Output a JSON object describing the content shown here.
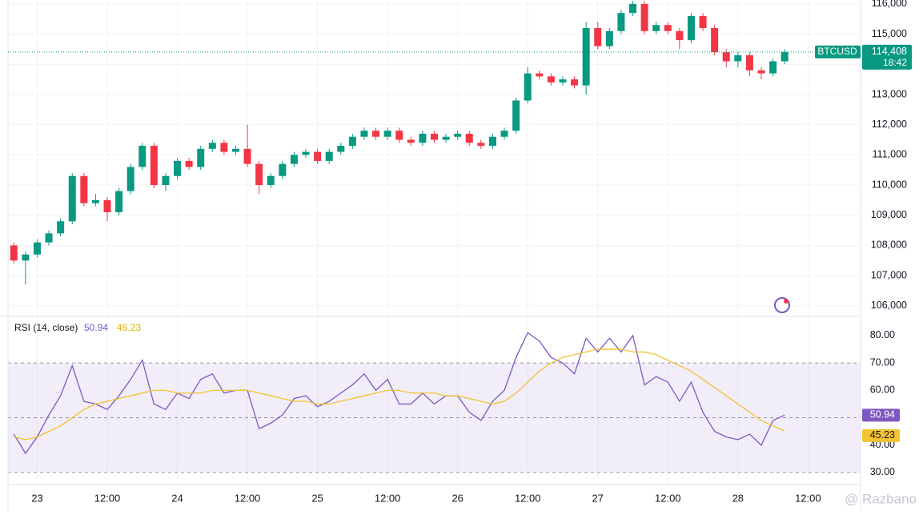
{
  "chart_data": [
    {
      "type": "candlestick",
      "symbol": "BTCUSD",
      "last_price_label": "114,408",
      "countdown": "18:42",
      "up_color": "#089981",
      "down_color": "#f23645",
      "x": [
        -4,
        -2,
        0,
        2,
        4,
        6,
        8,
        10,
        12,
        14,
        16,
        18,
        20,
        22,
        24,
        26,
        28,
        30,
        32,
        34,
        36,
        38,
        40,
        42,
        44,
        46,
        48,
        50,
        52,
        54,
        56,
        58,
        60,
        62,
        64,
        66,
        68,
        70,
        72,
        74,
        76,
        78,
        80,
        82,
        84,
        86,
        88,
        90,
        92,
        94,
        96,
        98,
        100,
        102,
        104,
        106,
        108,
        110,
        112,
        114,
        116,
        118,
        120,
        122,
        124,
        126,
        128
      ],
      "open": [
        108000,
        107500,
        107700,
        108100,
        108400,
        108800,
        110300,
        109400,
        109500,
        109100,
        109800,
        110600,
        111300,
        110000,
        110300,
        110800,
        110600,
        111200,
        111400,
        111100,
        111200,
        110700,
        110000,
        110300,
        110700,
        111000,
        111100,
        110800,
        111100,
        111300,
        111600,
        111800,
        111600,
        111800,
        111500,
        111400,
        111700,
        111500,
        111600,
        111700,
        111400,
        111300,
        111600,
        111800,
        112800,
        113700,
        113600,
        113400,
        113500,
        113300,
        115200,
        114600,
        115100,
        115700,
        116000,
        115100,
        115300,
        115100,
        114800,
        115600,
        115200,
        114400,
        114100,
        114300,
        113800,
        113700,
        114100
      ],
      "high": [
        108100,
        107800,
        108200,
        108500,
        108900,
        110400,
        110400,
        109700,
        109600,
        109900,
        110700,
        111400,
        111400,
        110400,
        110900,
        110900,
        111300,
        111500,
        111500,
        111300,
        112000,
        110800,
        110400,
        110800,
        111100,
        111200,
        111200,
        111200,
        111400,
        111700,
        111900,
        111900,
        111900,
        111900,
        111600,
        111800,
        111800,
        111700,
        111800,
        111800,
        111500,
        111700,
        111900,
        112900,
        113900,
        113800,
        113700,
        113600,
        113600,
        115400,
        115400,
        115200,
        115800,
        116100,
        116100,
        115400,
        115400,
        115200,
        115700,
        115700,
        115300,
        114500,
        114400,
        114400,
        113900,
        114200,
        114500
      ],
      "low": [
        107400,
        106700,
        107600,
        108000,
        108300,
        108700,
        109300,
        109300,
        108800,
        109000,
        109700,
        110500,
        109900,
        109800,
        110200,
        110500,
        110500,
        111100,
        111000,
        111000,
        110600,
        109700,
        109900,
        110200,
        110600,
        110900,
        110700,
        110700,
        111000,
        111200,
        111500,
        111500,
        111500,
        111400,
        111300,
        111300,
        111400,
        111400,
        111500,
        111300,
        111200,
        111200,
        111500,
        111700,
        112700,
        113500,
        113300,
        113300,
        113200,
        113000,
        114500,
        114500,
        115000,
        115600,
        115000,
        115000,
        115000,
        114500,
        114700,
        115100,
        114300,
        113900,
        113900,
        113600,
        113500,
        113600,
        114000
      ],
      "close": [
        107500,
        107700,
        108100,
        108400,
        108800,
        110300,
        109400,
        109500,
        109100,
        109800,
        110600,
        111300,
        110000,
        110300,
        110800,
        110600,
        111200,
        111400,
        111100,
        111200,
        110700,
        110000,
        110300,
        110700,
        111000,
        111100,
        110800,
        111100,
        111300,
        111600,
        111800,
        111600,
        111800,
        111500,
        111400,
        111700,
        111500,
        111600,
        111700,
        111400,
        111300,
        111600,
        111800,
        112800,
        113700,
        113600,
        113400,
        113500,
        113300,
        115200,
        114600,
        115100,
        115700,
        116000,
        115100,
        115300,
        115100,
        114800,
        115600,
        115200,
        114400,
        114100,
        114300,
        113800,
        113700,
        114100,
        114408
      ],
      "xlim": [
        -5,
        141
      ],
      "xticks": [
        {
          "value": 0,
          "label": "23"
        },
        {
          "value": 12,
          "label": "12:00"
        },
        {
          "value": 24,
          "label": "24"
        },
        {
          "value": 36,
          "label": "12:00"
        },
        {
          "value": 48,
          "label": "25"
        },
        {
          "value": 60,
          "label": "12:00"
        },
        {
          "value": 72,
          "label": "26"
        },
        {
          "value": 84,
          "label": "12:00"
        },
        {
          "value": 96,
          "label": "27"
        },
        {
          "value": 108,
          "label": "12:00"
        },
        {
          "value": 120,
          "label": "28"
        },
        {
          "value": 132,
          "label": "12:00"
        }
      ],
      "ylim": [
        105650,
        116130
      ],
      "yticks": [
        {
          "value": 106000,
          "label": "106,000"
        },
        {
          "value": 107000,
          "label": "107,000"
        },
        {
          "value": 108000,
          "label": "108,000"
        },
        {
          "value": 109000,
          "label": "109,000"
        },
        {
          "value": 110000,
          "label": "110,000"
        },
        {
          "value": 111000,
          "label": "111,000"
        },
        {
          "value": 112000,
          "label": "112,000"
        },
        {
          "value": 113000,
          "label": "113,000"
        },
        {
          "value": 114000,
          "label": "114,000"
        },
        {
          "value": 115000,
          "label": "115,000"
        },
        {
          "value": 116000,
          "label": "116,000"
        }
      ],
      "grid": true,
      "watermark": "@ Razbano"
    },
    {
      "type": "line",
      "title": "RSI (14, close)",
      "series": [
        {
          "color": "#7e57c2",
          "values": [
            44,
            37,
            43,
            51,
            58,
            69,
            56,
            55,
            53,
            58,
            64,
            71,
            55,
            53,
            59,
            57,
            64,
            66,
            59,
            60,
            60,
            46,
            48,
            51,
            57,
            58,
            54,
            56,
            59,
            62,
            66,
            60,
            64,
            55,
            55,
            59,
            55,
            58,
            58,
            52,
            49,
            56,
            60,
            72,
            81,
            78,
            72,
            70,
            66,
            79,
            74,
            79,
            74,
            80,
            62,
            65,
            63,
            56,
            63,
            52,
            45,
            43,
            42,
            44,
            40,
            49,
            50.94
          ]
        },
        {
          "color": "#f2c230",
          "values": [
            43,
            42,
            43,
            45,
            47,
            50,
            53,
            55,
            56,
            57,
            58,
            59,
            60,
            60,
            59,
            59,
            59,
            60,
            60,
            60,
            60,
            59,
            58,
            57,
            56,
            56,
            55,
            55,
            56,
            57,
            58,
            59,
            60,
            60,
            59,
            59,
            59,
            58,
            58,
            57,
            56,
            55,
            56,
            59,
            63,
            67,
            70,
            72,
            73,
            74,
            75,
            75,
            75,
            74,
            74,
            73,
            71,
            69,
            67,
            64,
            61,
            58,
            55,
            52,
            49,
            47,
            45.23
          ]
        }
      ],
      "levels": [
        70,
        50,
        30
      ],
      "ylim": [
        25.6,
        87
      ],
      "yticks": [
        {
          "value": 30,
          "label": "30.00"
        },
        {
          "value": 40,
          "label": "40.00"
        },
        {
          "value": 50,
          "label": "50.00"
        },
        {
          "value": 60,
          "label": "60.00"
        },
        {
          "value": 70,
          "label": "70.00"
        },
        {
          "value": 80,
          "label": "80.00"
        }
      ]
    }
  ]
}
